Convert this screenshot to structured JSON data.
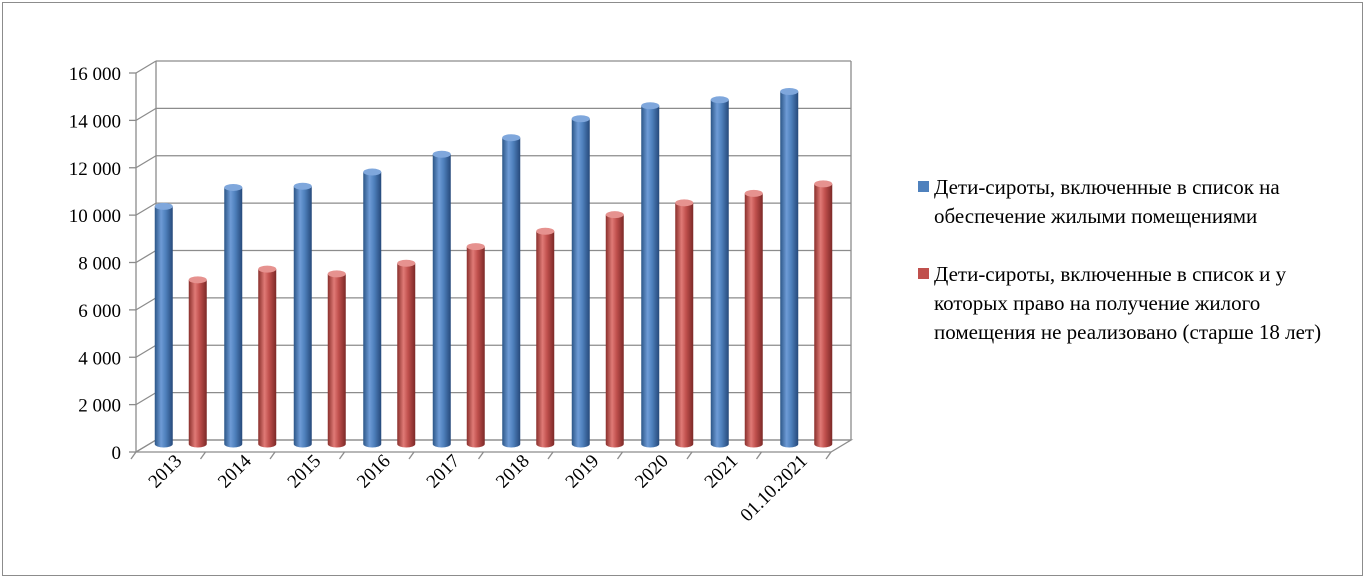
{
  "chart_data": {
    "type": "bar",
    "categories": [
      "2013",
      "2014",
      "2015",
      "2016",
      "2017",
      "2018",
      "2019",
      "2020",
      "2021",
      "01.10.2021"
    ],
    "series": [
      {
        "name": "Дети-сироты, включенные в список на обеспечение жилыми помещениями",
        "color": "#4f81bd",
        "values": [
          10200,
          11000,
          11050,
          11650,
          12400,
          13100,
          13900,
          14450,
          14700,
          15050
        ]
      },
      {
        "name": "Дети-сироты, включенные в список и у которых право на получение жилого помещения не реализовано (старше 18 лет)",
        "color": "#c0504d",
        "values": [
          7100,
          7550,
          7350,
          7800,
          8500,
          9150,
          9850,
          10350,
          10750,
          11150
        ]
      }
    ],
    "yticks": [
      0,
      2000,
      4000,
      6000,
      8000,
      10000,
      12000,
      14000,
      16000
    ],
    "ytick_labels": [
      "0",
      "2 000",
      "4 000",
      "6 000",
      "8 000",
      "10 000",
      "12 000",
      "14 000",
      "16 000"
    ],
    "ylim": [
      0,
      16000
    ],
    "grid": true,
    "style": "3d-cylinder",
    "legend_position": "right"
  }
}
